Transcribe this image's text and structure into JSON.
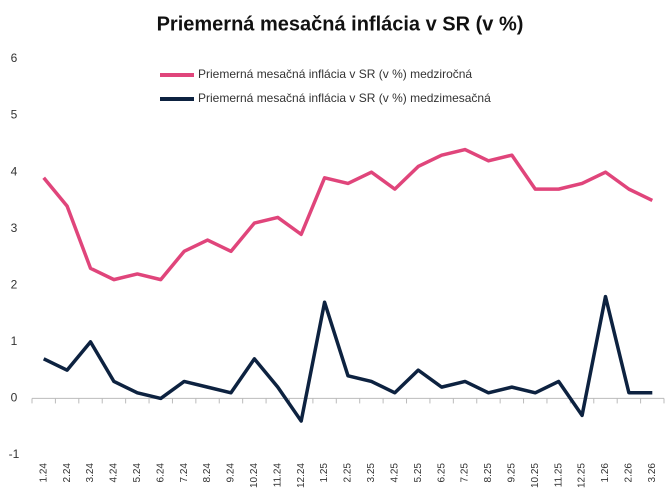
{
  "chart_data": {
    "type": "line",
    "title": "Priemerná mesačná inflácia v SR (v %)",
    "categories": [
      "1.24",
      "2.24",
      "3.24",
      "4.24",
      "5.24",
      "6.24",
      "7.24",
      "8.24",
      "9.24",
      "10.24",
      "11.24",
      "12.24",
      "1.25",
      "2.25",
      "3.25",
      "4.25",
      "5.25",
      "6.25",
      "7.25",
      "8.25",
      "9.25",
      "10.25",
      "11.25",
      "12.25",
      "1.26",
      "2.26",
      "3.26"
    ],
    "series": [
      {
        "name": "Priemerná mesačná inflácia v SR (v %) medziročná",
        "color": "#e0457b",
        "values": [
          3.9,
          3.4,
          2.3,
          2.1,
          2.2,
          2.1,
          2.6,
          2.8,
          2.6,
          3.1,
          3.2,
          2.9,
          3.9,
          3.8,
          4.0,
          3.7,
          4.1,
          4.3,
          4.4,
          4.2,
          4.3,
          3.7,
          3.7,
          3.8,
          4.0,
          3.7,
          3.5
        ]
      },
      {
        "name": "Priemerná mesačná inflácia v SR (v %) medzimesačná",
        "color": "#0d2240",
        "values": [
          0.7,
          0.5,
          1.0,
          0.3,
          0.1,
          0.0,
          0.3,
          0.2,
          0.1,
          0.7,
          0.2,
          -0.4,
          1.7,
          0.4,
          0.3,
          0.1,
          0.5,
          0.2,
          0.3,
          0.1,
          0.2,
          0.1,
          0.3,
          -0.3,
          1.8,
          0.1,
          0.1
        ]
      }
    ],
    "ylim": [
      -1,
      6
    ],
    "yticks": [
      -1,
      0,
      1,
      2,
      3,
      4,
      5,
      6
    ],
    "grid": false,
    "legend": "top"
  }
}
